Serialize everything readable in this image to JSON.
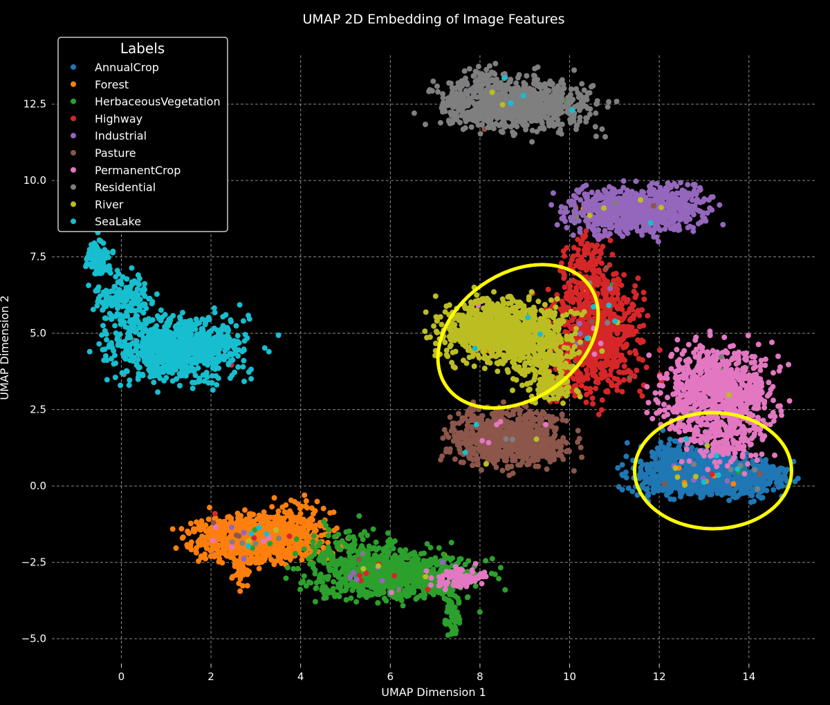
{
  "chart_data": {
    "type": "scatter",
    "title": "UMAP 2D Embedding of Image Features",
    "xlabel": "UMAP Dimension 1",
    "ylabel": "UMAP Dimension 2",
    "xlim": [
      -1.55,
      15.5
    ],
    "ylim": [
      -5.7,
      14.1
    ],
    "xticks": [
      0,
      2,
      4,
      6,
      8,
      10,
      12,
      14
    ],
    "yticks": [
      -5.0,
      -2.5,
      0.0,
      2.5,
      5.0,
      7.5,
      10.0,
      12.5
    ],
    "xtick_labels": [
      "0",
      "2",
      "4",
      "6",
      "8",
      "10",
      "12",
      "14"
    ],
    "ytick_labels": [
      "−5.0",
      "−2.5",
      "0.0",
      "2.5",
      "5.0",
      "7.5",
      "10.0",
      "12.5"
    ],
    "grid": true,
    "background": "#000000",
    "legend": {
      "title": "Labels",
      "placement": "top-left"
    },
    "series": [
      {
        "name": "AnnualCrop",
        "color": "#1f77b4",
        "clusters": [
          [
            13.1,
            0.3,
            0.85,
            0.35,
            900
          ],
          [
            12.4,
            0.8,
            0.5,
            0.4,
            150
          ],
          [
            14.3,
            0.4,
            0.3,
            0.15,
            60
          ]
        ]
      },
      {
        "name": "Forest",
        "color": "#ff7f0e",
        "clusters": [
          [
            3.0,
            -1.7,
            0.75,
            0.4,
            900
          ],
          [
            2.7,
            -2.8,
            0.12,
            0.3,
            40
          ],
          [
            4.0,
            -1.1,
            0.4,
            0.4,
            80
          ]
        ]
      },
      {
        "name": "HerbaceousVegetation",
        "color": "#2ca02c",
        "clusters": [
          [
            6.0,
            -2.9,
            0.95,
            0.45,
            900
          ],
          [
            7.4,
            -4.2,
            0.1,
            0.4,
            60
          ],
          [
            5.0,
            -2.0,
            0.6,
            0.5,
            80
          ]
        ]
      },
      {
        "name": "Highway",
        "color": "#d62728",
        "clusters": [
          [
            10.6,
            5.1,
            0.55,
            1.1,
            800
          ],
          [
            10.4,
            7.4,
            0.25,
            0.6,
            80
          ],
          [
            9.8,
            3.5,
            0.2,
            0.4,
            40
          ]
        ]
      },
      {
        "name": "Industrial",
        "color": "#9467bd",
        "clusters": [
          [
            11.4,
            9.0,
            0.75,
            0.4,
            800
          ],
          [
            12.4,
            9.4,
            0.4,
            0.3,
            100
          ]
        ]
      },
      {
        "name": "Pasture",
        "color": "#8c564b",
        "clusters": [
          [
            8.6,
            1.6,
            0.65,
            0.5,
            800
          ],
          [
            9.5,
            1.2,
            0.3,
            0.3,
            60
          ]
        ]
      },
      {
        "name": "PermanentCrop",
        "color": "#e377c2",
        "clusters": [
          [
            13.3,
            3.1,
            0.65,
            0.8,
            850
          ],
          [
            13.5,
            1.4,
            0.5,
            0.4,
            120
          ],
          [
            7.6,
            -3.0,
            0.35,
            0.2,
            80
          ]
        ]
      },
      {
        "name": "Residential",
        "color": "#7f7f7f",
        "clusters": [
          [
            8.8,
            12.5,
            0.9,
            0.45,
            900
          ],
          [
            8.1,
            13.4,
            0.25,
            0.2,
            40
          ]
        ]
      },
      {
        "name": "River",
        "color": "#bcbd22",
        "clusters": [
          [
            8.5,
            5.1,
            0.75,
            0.55,
            900
          ],
          [
            9.4,
            4.2,
            0.45,
            0.6,
            200
          ],
          [
            9.6,
            3.2,
            0.3,
            0.3,
            80
          ]
        ]
      },
      {
        "name": "SeaLake",
        "color": "#17becf",
        "clusters": [
          [
            1.3,
            4.5,
            0.8,
            0.55,
            900
          ],
          [
            -0.5,
            7.4,
            0.15,
            0.35,
            120
          ],
          [
            0.1,
            6.1,
            0.35,
            0.5,
            160
          ]
        ]
      }
    ],
    "annotations": [
      {
        "type": "ellipse",
        "color": "#ffff00",
        "center": [
          8.85,
          4.9
        ],
        "radii": [
          1.95,
          2.05
        ],
        "rotation_deg": -35
      },
      {
        "type": "ellipse",
        "color": "#ffff00",
        "center": [
          13.2,
          0.5
        ],
        "radii": [
          1.75,
          1.9
        ],
        "rotation_deg": 0
      }
    ]
  }
}
